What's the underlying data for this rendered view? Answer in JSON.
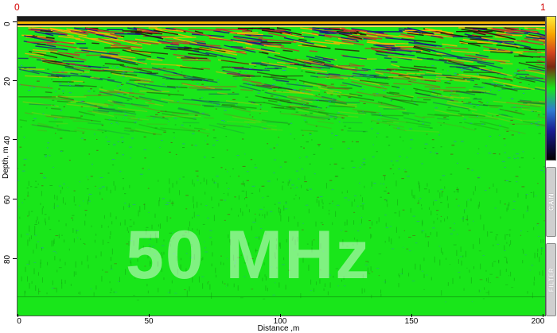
{
  "corners": {
    "left": "0",
    "right": "1"
  },
  "axes": {
    "y_label": "Depth, m",
    "x_label": "Distance ,m",
    "y_ticks": [
      "0",
      "20",
      "40",
      "60",
      "80"
    ],
    "x_ticks": [
      "0",
      "50",
      "100",
      "150",
      "200"
    ]
  },
  "watermark": "50 MHz",
  "controls": {
    "gain": "GAIN",
    "filter": "FILTER"
  },
  "colors": {
    "background_green": "#19e61a",
    "palette": [
      "#2a1a08",
      "#c0392b",
      "#f4b400",
      "#ffe066",
      "#19e61a",
      "#2f7dd1",
      "#1a1a80",
      "#000000"
    ]
  }
}
